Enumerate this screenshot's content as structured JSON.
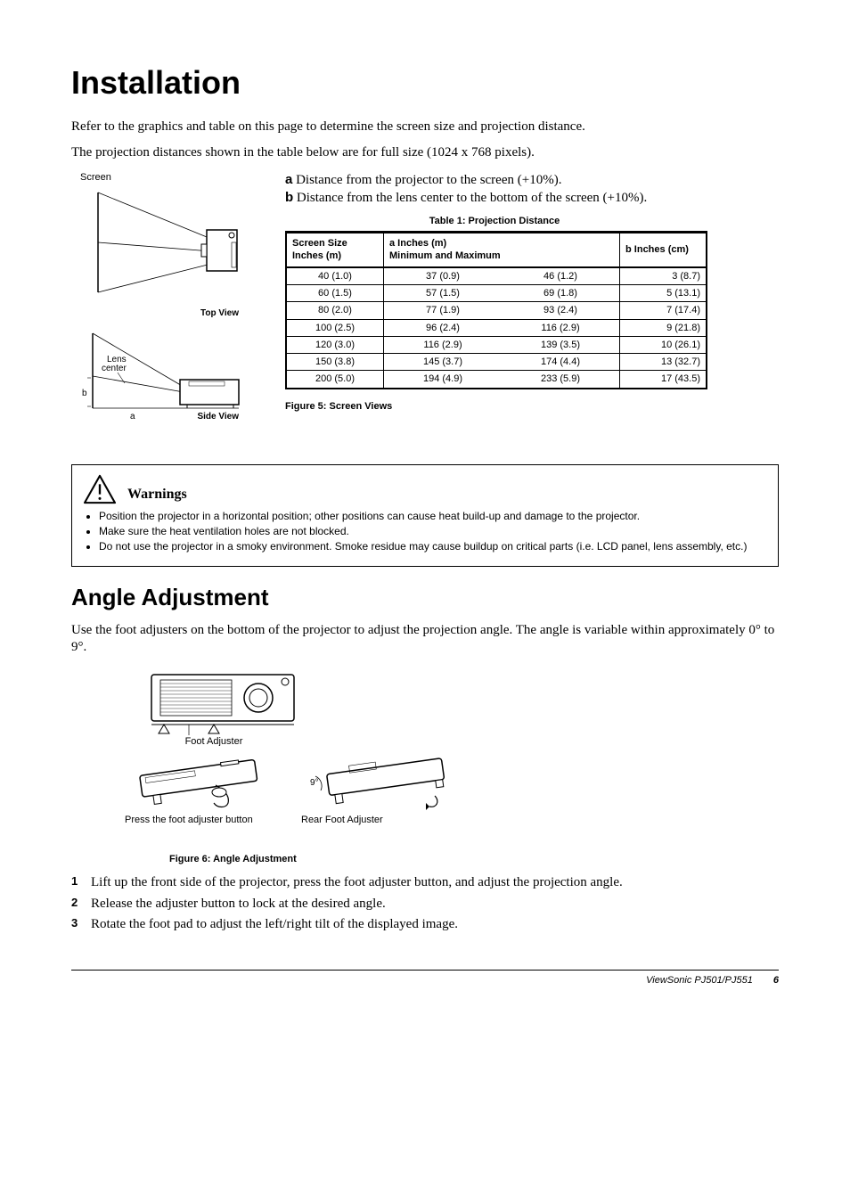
{
  "title": "Installation",
  "intro1": "Refer to the graphics and table on this page to determine the screen size and projection distance.",
  "intro2": "The projection distances shown in the table below are for full size (1024 x 768 pixels).",
  "screen_label": "Screen",
  "top_view_label": "Top View",
  "lens_center_label": "Lens center",
  "side_b": "b",
  "side_a": "a",
  "side_view_label": "Side View",
  "defs": {
    "a_prefix": "a",
    "a_text": " Distance from the projector to the screen (+10%).",
    "b_prefix": "b",
    "b_text": " Distance from the lens center to the bottom of the screen (+10%)."
  },
  "table_caption": "Table 1: Projection Distance",
  "table": {
    "h1": "Screen Size Inches (m)",
    "h2a": "a",
    "h2b": " Inches (m)",
    "h2c": "Minimum and Maximum",
    "h3a": "b",
    "h3b": " Inches (cm)",
    "rows": [
      [
        "40 (1.0)",
        "37 (0.9)",
        "46 (1.2)",
        "3 (8.7)"
      ],
      [
        "60 (1.5)",
        "57 (1.5)",
        "69 (1.8)",
        "5 (13.1)"
      ],
      [
        "80 (2.0)",
        "77 (1.9)",
        "93 (2.4)",
        "7 (17.4)"
      ],
      [
        "100 (2.5)",
        "96 (2.4)",
        "116 (2.9)",
        "9 (21.8)"
      ],
      [
        "120 (3.0)",
        "116 (2.9)",
        "139 (3.5)",
        "10 (26.1)"
      ],
      [
        "150 (3.8)",
        "145 (3.7)",
        "174 (4.4)",
        "13 (32.7)"
      ],
      [
        "200 (5.0)",
        "194 (4.9)",
        "233 (5.9)",
        "17 (43.5)"
      ]
    ]
  },
  "fig5_caption": "Figure 5:  Screen Views",
  "warnings": {
    "label": "Warnings",
    "items": [
      "Position the projector in a horizontal position; other positions can cause heat build-up and damage to the projector.",
      "Make sure the heat ventilation holes are not blocked.",
      "Do not use the projector in a smoky environment. Smoke residue may cause buildup on critical parts (i.e. LCD panel, lens assembly, etc.)"
    ]
  },
  "angle": {
    "heading": "Angle Adjustment",
    "para": "Use the foot adjusters on the bottom of the projector to adjust the projection angle. The angle is variable within approximately 0° to 9°.",
    "foot_adjuster": "Foot Adjuster",
    "press_btn": "Press the foot adjuster button",
    "rear_foot": "Rear Foot Adjuster",
    "nine": "9°",
    "fig6_caption": "Figure 6: Angle Adjustment",
    "steps": [
      "Lift up the front side of the projector, press the foot adjuster button, and adjust the projection angle.",
      "Release the adjuster button to lock at the desired angle.",
      "Rotate the foot pad to adjust the left/right tilt of the displayed image."
    ]
  },
  "footer": {
    "model": "ViewSonic  PJ501/PJ551",
    "page": "6"
  },
  "colors": {
    "text": "#000000",
    "bg": "#ffffff"
  }
}
